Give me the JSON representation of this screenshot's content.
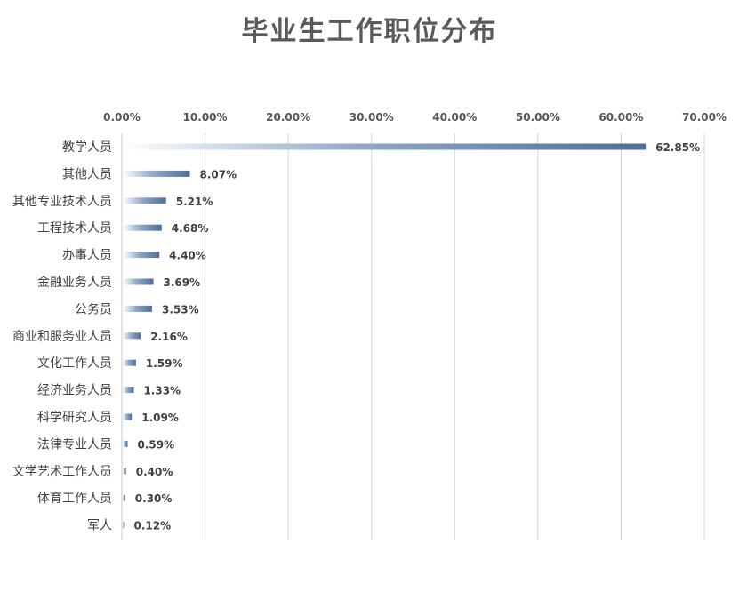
{
  "chart_data": {
    "type": "bar",
    "orientation": "horizontal",
    "title": "毕业生工作职位分布",
    "categories": [
      "教学人员",
      "其他人员",
      "其他专业技术人员",
      "工程技术人员",
      "办事人员",
      "金融业务人员",
      "公务员",
      "商业和服务业人员",
      "文化工作人员",
      "经济业务人员",
      "科学研究人员",
      "法律专业人员",
      "文学艺术工作人员",
      "体育工作人员",
      "军人"
    ],
    "values": [
      62.85,
      8.07,
      5.21,
      4.68,
      4.4,
      3.69,
      3.53,
      2.16,
      1.59,
      1.33,
      1.09,
      0.59,
      0.4,
      0.3,
      0.12
    ],
    "value_labels": [
      "62.85%",
      "8.07%",
      "5.21%",
      "4.68%",
      "4.40%",
      "3.69%",
      "3.53%",
      "2.16%",
      "1.59%",
      "1.33%",
      "1.09%",
      "0.59%",
      "0.40%",
      "0.30%",
      "0.12%"
    ],
    "x_ticks": [
      "0.00%",
      "10.00%",
      "20.00%",
      "30.00%",
      "40.00%",
      "50.00%",
      "60.00%",
      "70.00%"
    ],
    "xlim": [
      0,
      70
    ],
    "x_axis_position": "top",
    "grid": true,
    "legend": "none",
    "bar_color": "#4f6d96"
  }
}
